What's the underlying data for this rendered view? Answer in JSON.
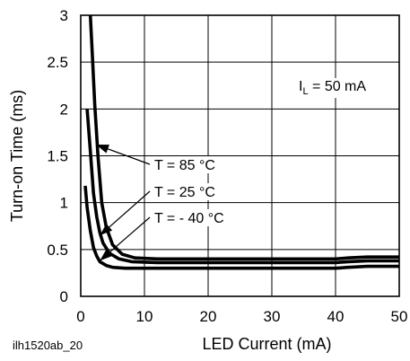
{
  "chart_data": {
    "type": "line",
    "xlabel": "LED Current (mA)",
    "ylabel": "Turn-on Time (ms)",
    "xlim": [
      0,
      50
    ],
    "ylim": [
      0,
      3
    ],
    "x_ticks": [
      "0",
      "10",
      "20",
      "30",
      "40",
      "50"
    ],
    "y_ticks": [
      "0",
      "0.5",
      "1",
      "1.5",
      "2",
      "2.5",
      "3"
    ],
    "grid": true,
    "annotation": {
      "text": "I",
      "subscript": "L",
      "suffix": " = 50 mA"
    },
    "footer": "ilh1520ab_20",
    "series": [
      {
        "name": "T = 85 °C",
        "points": [
          [
            1.5,
            3.0
          ],
          [
            1.8,
            2.6
          ],
          [
            2.2,
            2.05
          ],
          [
            2.7,
            1.5
          ],
          [
            3.3,
            1.0
          ],
          [
            4.0,
            0.74
          ],
          [
            5.0,
            0.55
          ],
          [
            6.5,
            0.45
          ],
          [
            8.5,
            0.41
          ],
          [
            12,
            0.4
          ],
          [
            20,
            0.4
          ],
          [
            30,
            0.4
          ],
          [
            40,
            0.4
          ],
          [
            42,
            0.41
          ],
          [
            45,
            0.42
          ],
          [
            50,
            0.42
          ]
        ]
      },
      {
        "name": "T = 25 °C",
        "points": [
          [
            1.0,
            2.0
          ],
          [
            1.5,
            1.55
          ],
          [
            2.0,
            1.1
          ],
          [
            2.5,
            0.85
          ],
          [
            3.0,
            0.68
          ],
          [
            3.5,
            0.57
          ],
          [
            4.5,
            0.46
          ],
          [
            6.0,
            0.4
          ],
          [
            8.0,
            0.37
          ],
          [
            12,
            0.36
          ],
          [
            20,
            0.36
          ],
          [
            30,
            0.36
          ],
          [
            40,
            0.36
          ],
          [
            42,
            0.37
          ],
          [
            45,
            0.38
          ],
          [
            50,
            0.38
          ]
        ]
      },
      {
        "name": "T = - 40 °C",
        "points": [
          [
            0.7,
            1.18
          ],
          [
            1.0,
            0.95
          ],
          [
            1.5,
            0.7
          ],
          [
            2.0,
            0.52
          ],
          [
            2.5,
            0.43
          ],
          [
            3.0,
            0.37
          ],
          [
            4.0,
            0.33
          ],
          [
            5.0,
            0.31
          ],
          [
            7.0,
            0.3
          ],
          [
            10,
            0.3
          ],
          [
            20,
            0.3
          ],
          [
            30,
            0.3
          ],
          [
            40,
            0.3
          ],
          [
            42,
            0.31
          ],
          [
            45,
            0.32
          ],
          [
            50,
            0.32
          ]
        ]
      }
    ],
    "callouts": [
      {
        "label": "T = 85 °C",
        "target": [
          2.4,
          1.62
        ]
      },
      {
        "label": "T = 25 °C",
        "target": [
          3.0,
          0.65
        ]
      },
      {
        "label": "T = - 40 °C",
        "target": [
          3.0,
          0.38
        ]
      }
    ]
  }
}
